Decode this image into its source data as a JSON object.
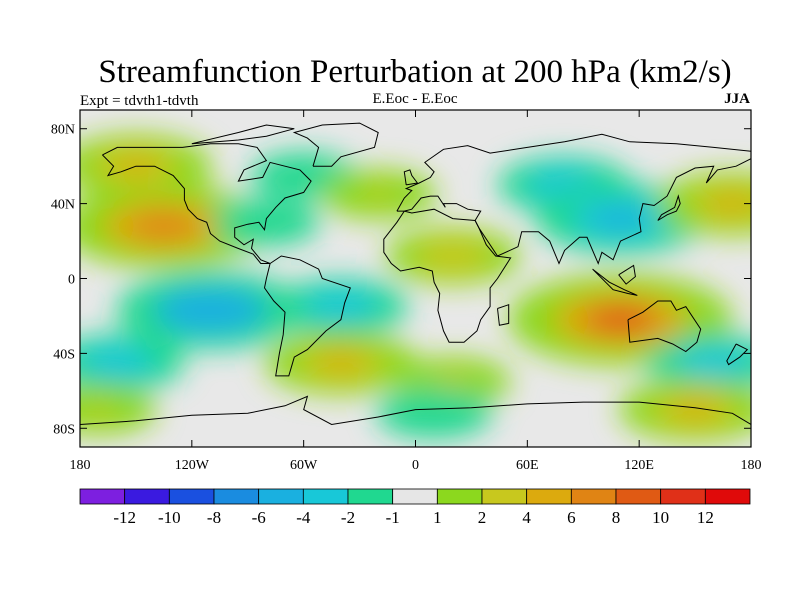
{
  "title": "Streamfunction Perturbation at 200 hPa (km2/s)",
  "left_label": "Expt = tdvth1-tdvth",
  "center_label": "E.Eoc - E.Eoc",
  "right_label": "JJA",
  "map": {
    "lon_range": [
      -180,
      180
    ],
    "lat_range": [
      -90,
      90
    ],
    "background": "#e8e8e8",
    "lat_ticks": [
      {
        "value": 80,
        "label": "80N"
      },
      {
        "value": 40,
        "label": "40N"
      },
      {
        "value": 0,
        "label": "0"
      },
      {
        "value": -40,
        "label": "40S"
      },
      {
        "value": -80,
        "label": "80S"
      }
    ],
    "lon_ticks": [
      {
        "value": -180,
        "label": "180"
      },
      {
        "value": -120,
        "label": "120W"
      },
      {
        "value": -60,
        "label": "60W"
      },
      {
        "value": 0,
        "label": "0"
      },
      {
        "value": 60,
        "label": "60E"
      },
      {
        "value": 120,
        "label": "120E"
      },
      {
        "value": 180,
        "label": "180"
      }
    ],
    "anomaly_centers": [
      {
        "lon": -150,
        "lat": 60,
        "value": 4
      },
      {
        "lon": -135,
        "lat": 28,
        "value": 7
      },
      {
        "lon": -80,
        "lat": 30,
        "value": -1.5
      },
      {
        "lon": -60,
        "lat": 55,
        "value": -1.5
      },
      {
        "lon": -20,
        "lat": 45,
        "value": 2
      },
      {
        "lon": 20,
        "lat": 12,
        "value": 3
      },
      {
        "lon": 80,
        "lat": 50,
        "value": -3
      },
      {
        "lon": 110,
        "lat": 32,
        "value": -5
      },
      {
        "lon": 170,
        "lat": 40,
        "value": 4
      },
      {
        "lon": -110,
        "lat": -17,
        "value": -6
      },
      {
        "lon": -40,
        "lat": -15,
        "value": -3
      },
      {
        "lon": -160,
        "lat": -45,
        "value": -3
      },
      {
        "lon": -170,
        "lat": -70,
        "value": 2
      },
      {
        "lon": -40,
        "lat": -45,
        "value": 4
      },
      {
        "lon": 20,
        "lat": -55,
        "value": 2
      },
      {
        "lon": 110,
        "lat": -22,
        "value": 8
      },
      {
        "lon": 160,
        "lat": -45,
        "value": -3
      },
      {
        "lon": 150,
        "lat": -70,
        "value": 4
      },
      {
        "lon": 10,
        "lat": -72,
        "value": -2
      }
    ]
  },
  "colorbar": {
    "colors": [
      "#7d1fe0",
      "#3a1ae0",
      "#1a50e0",
      "#1a8ce0",
      "#1ab0e0",
      "#18c8d8",
      "#20d890",
      "#e6e6e6",
      "#8cd81e",
      "#c8c81e",
      "#dcaa0e",
      "#e08414",
      "#e05a14",
      "#e03018",
      "#e00a0a"
    ],
    "labels": [
      "-12",
      "-10",
      "-8",
      "-6",
      "-4",
      "-2",
      "-1",
      "1",
      "2",
      "4",
      "6",
      "8",
      "10",
      "12"
    ],
    "levels": [
      -12,
      -10,
      -8,
      -6,
      -4,
      -2,
      -1,
      1,
      2,
      4,
      6,
      8,
      10,
      12
    ]
  }
}
